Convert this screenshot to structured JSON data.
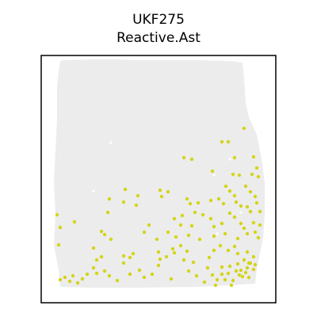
{
  "chart_data": {
    "type": "scatter",
    "title": "UKF275",
    "subtitle": "Reactive.Ast",
    "xlabel": "",
    "ylabel": "",
    "grid": false,
    "legend": "none",
    "colors": {
      "tissue": "#ececec",
      "positive": "#d4d418",
      "frame": "#000000"
    },
    "tissue_outline": [
      [
        24,
        8
      ],
      [
        26,
        6
      ],
      [
        64,
        5
      ],
      [
        96,
        5
      ],
      [
        118,
        6
      ],
      [
        196,
        6
      ],
      [
        240,
        7
      ],
      [
        254,
        9
      ],
      [
        256,
        30
      ],
      [
        258,
        60
      ],
      [
        262,
        78
      ],
      [
        272,
        100
      ],
      [
        278,
        130
      ],
      [
        282,
        160
      ],
      [
        282,
        200
      ],
      [
        280,
        230
      ],
      [
        276,
        250
      ],
      [
        272,
        270
      ],
      [
        270,
        288
      ],
      [
        200,
        292
      ],
      [
        120,
        293
      ],
      [
        60,
        293
      ],
      [
        24,
        292
      ],
      [
        22,
        270
      ],
      [
        16,
        240
      ],
      [
        18,
        200
      ],
      [
        16,
        160
      ],
      [
        18,
        120
      ],
      [
        20,
        80
      ],
      [
        20,
        40
      ],
      [
        22,
        20
      ]
    ],
    "positive_spots": [
      [
        256,
        92
      ],
      [
        228,
        109
      ],
      [
        236,
        109
      ],
      [
        180,
        129
      ],
      [
        190,
        131
      ],
      [
        244,
        129
      ],
      [
        268,
        128
      ],
      [
        272,
        142
      ],
      [
        266,
        150
      ],
      [
        274,
        153
      ],
      [
        242,
        150
      ],
      [
        250,
        151
      ],
      [
        216,
        146
      ],
      [
        258,
        165
      ],
      [
        264,
        172
      ],
      [
        238,
        171
      ],
      [
        270,
        178
      ],
      [
        106,
        169
      ],
      [
        150,
        170
      ],
      [
        160,
        172
      ],
      [
        233,
        165
      ],
      [
        244,
        177
      ],
      [
        122,
        177
      ],
      [
        152,
        178
      ],
      [
        86,
        181
      ],
      [
        104,
        185
      ],
      [
        120,
        189
      ],
      [
        184,
        181
      ],
      [
        188,
        187
      ],
      [
        198,
        186
      ],
      [
        214,
        183
      ],
      [
        224,
        181
      ],
      [
        230,
        187
      ],
      [
        246,
        185
      ],
      [
        252,
        190
      ],
      [
        260,
        191
      ],
      [
        272,
        186
      ],
      [
        264,
        197
      ],
      [
        276,
        197
      ],
      [
        20,
        201
      ],
      [
        84,
        198
      ],
      [
        178,
        202
      ],
      [
        194,
        198
      ],
      [
        204,
        201
      ],
      [
        238,
        199
      ],
      [
        244,
        204
      ],
      [
        252,
        212
      ],
      [
        268,
        211
      ],
      [
        24,
        217
      ],
      [
        42,
        210
      ],
      [
        136,
        214
      ],
      [
        130,
        223
      ],
      [
        168,
        206
      ],
      [
        176,
        214
      ],
      [
        190,
        215
      ],
      [
        214,
        206
      ],
      [
        218,
        216
      ],
      [
        228,
        212
      ],
      [
        256,
        218
      ],
      [
        276,
        214
      ],
      [
        80,
        226
      ],
      [
        88,
        232
      ],
      [
        76,
        222
      ],
      [
        146,
        232
      ],
      [
        160,
        223
      ],
      [
        170,
        229
      ],
      [
        186,
        227
      ],
      [
        200,
        232
      ],
      [
        218,
        228
      ],
      [
        232,
        225
      ],
      [
        248,
        231
      ],
      [
        260,
        225
      ],
      [
        270,
        223
      ],
      [
        274,
        230
      ],
      [
        22,
        239
      ],
      [
        66,
        243
      ],
      [
        70,
        258
      ],
      [
        76,
        254
      ],
      [
        104,
        253
      ],
      [
        112,
        255
      ],
      [
        116,
        250
      ],
      [
        150,
        257
      ],
      [
        158,
        254
      ],
      [
        166,
        244
      ],
      [
        176,
        240
      ],
      [
        184,
        247
      ],
      [
        148,
        248
      ],
      [
        168,
        249
      ],
      [
        180,
        258
      ],
      [
        192,
        261
      ],
      [
        212,
        255
      ],
      [
        218,
        246
      ],
      [
        226,
        240
      ],
      [
        236,
        246
      ],
      [
        244,
        241
      ],
      [
        248,
        250
      ],
      [
        260,
        248
      ],
      [
        268,
        254
      ],
      [
        262,
        262
      ],
      [
        270,
        264
      ],
      [
        24,
        283
      ],
      [
        30,
        280
      ],
      [
        36,
        285
      ],
      [
        40,
        278
      ],
      [
        46,
        287
      ],
      [
        52,
        282
      ],
      [
        58,
        276
      ],
      [
        66,
        268
      ],
      [
        70,
        275
      ],
      [
        80,
        272
      ],
      [
        86,
        278
      ],
      [
        96,
        284
      ],
      [
        104,
        262
      ],
      [
        112,
        276
      ],
      [
        124,
        271
      ],
      [
        130,
        280
      ],
      [
        140,
        276
      ],
      [
        148,
        265
      ],
      [
        164,
        282
      ],
      [
        186,
        272
      ],
      [
        196,
        278
      ],
      [
        206,
        286
      ],
      [
        210,
        268
      ],
      [
        216,
        277
      ],
      [
        222,
        283
      ],
      [
        228,
        267
      ],
      [
        236,
        275
      ],
      [
        242,
        284
      ],
      [
        248,
        263
      ],
      [
        252,
        271
      ],
      [
        254,
        279
      ],
      [
        260,
        268
      ],
      [
        264,
        262
      ],
      [
        268,
        270
      ],
      [
        256,
        258
      ],
      [
        238,
        266
      ],
      [
        228,
        276
      ],
      [
        232,
        283
      ],
      [
        240,
        290
      ],
      [
        220,
        290
      ],
      [
        246,
        272
      ],
      [
        250,
        277
      ],
      [
        258,
        274
      ],
      [
        262,
        280
      ]
    ],
    "white_specks": [
      [
        88,
        110
      ],
      [
        66,
        171
      ],
      [
        218,
        151
      ],
      [
        238,
        131
      ],
      [
        252,
        198
      ],
      [
        222,
        225
      ]
    ]
  }
}
